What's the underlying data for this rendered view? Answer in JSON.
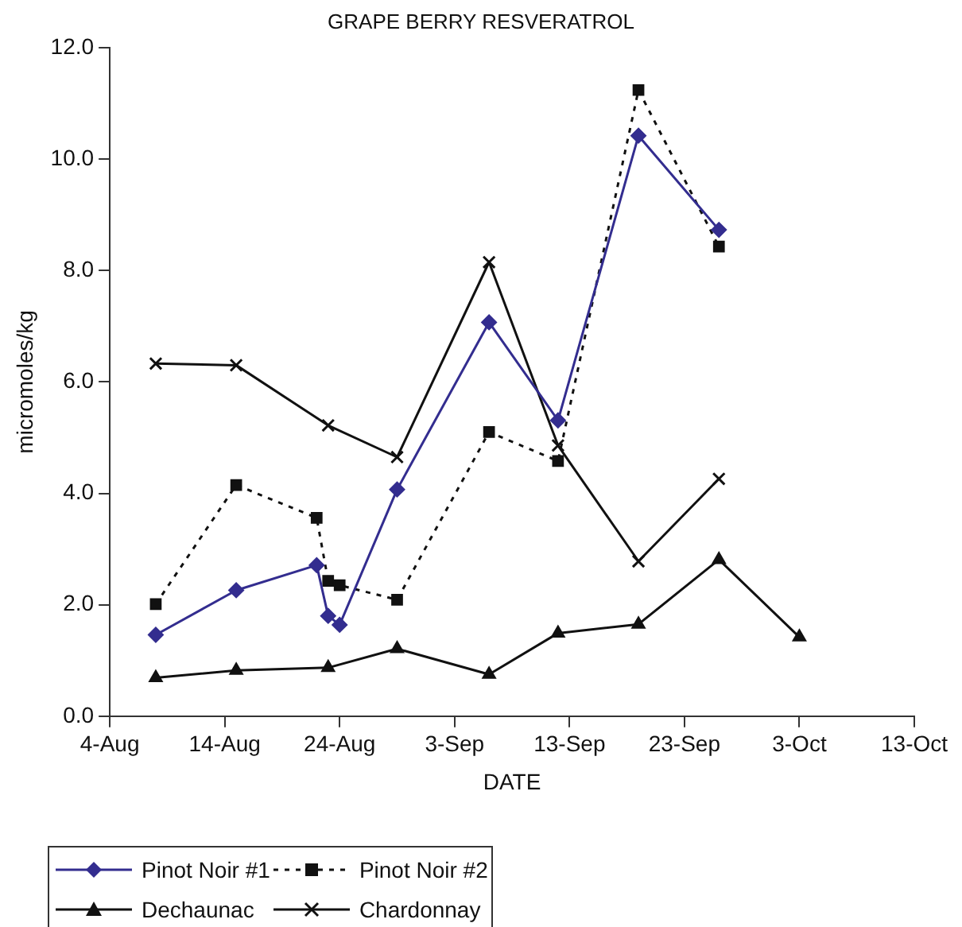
{
  "chart_data": {
    "type": "line",
    "title": "GRAPE BERRY RESVERATROL",
    "xlabel": "DATE",
    "ylabel": "micromoles/kg",
    "xlim": [
      "--08-04",
      "--10-13"
    ],
    "xticks": [
      {
        "value": "--08-04",
        "label": "4-Aug"
      },
      {
        "value": "--08-14",
        "label": "14-Aug"
      },
      {
        "value": "--08-24",
        "label": "24-Aug"
      },
      {
        "value": "--09-03",
        "label": "3-Sep"
      },
      {
        "value": "--09-13",
        "label": "13-Sep"
      },
      {
        "value": "--09-23",
        "label": "23-Sep"
      },
      {
        "value": "--10-03",
        "label": "3-Oct"
      },
      {
        "value": "--10-13",
        "label": "13-Oct"
      }
    ],
    "ylim": [
      0,
      12
    ],
    "yticks": [
      {
        "value": 0,
        "label": "0.0"
      },
      {
        "value": 2,
        "label": "2.0"
      },
      {
        "value": 4,
        "label": "4.0"
      },
      {
        "value": 6,
        "label": "6.0"
      },
      {
        "value": 8,
        "label": "8.0"
      },
      {
        "value": 10,
        "label": "10.0"
      },
      {
        "value": 12,
        "label": "12.0"
      }
    ],
    "grid": false,
    "legend": "bottom left",
    "series": [
      {
        "name": "Pinot Noir #1",
        "color": "#332d8f",
        "marker": "diamond",
        "line_style": "solid",
        "x": [
          "--08-08",
          "--08-15",
          "--08-22",
          "--08-23",
          "--08-24",
          "--08-29",
          "--09-06",
          "--09-12",
          "--09-19",
          "--09-26"
        ],
        "values": [
          1.46,
          2.26,
          2.71,
          1.8,
          1.64,
          4.07,
          7.07,
          5.31,
          10.42,
          8.73
        ]
      },
      {
        "name": "Pinot Noir #2",
        "color": "#111111",
        "marker": "square",
        "line_style": "dotted",
        "x": [
          "--08-08",
          "--08-15",
          "--08-22",
          "--08-23",
          "--08-24",
          "--08-29",
          "--09-06",
          "--09-12",
          "--09-19",
          "--09-26"
        ],
        "values": [
          2.01,
          4.15,
          3.56,
          2.43,
          2.35,
          2.09,
          5.1,
          4.58,
          11.24,
          8.43
        ]
      },
      {
        "name": "Dechaunac",
        "color": "#111111",
        "marker": "triangle",
        "line_style": "solid",
        "x": [
          "--08-08",
          "--08-15",
          "--08-23",
          "--08-29",
          "--09-06",
          "--09-12",
          "--09-19",
          "--09-26",
          "--10-03"
        ],
        "values": [
          0.69,
          0.82,
          0.87,
          1.21,
          0.75,
          1.49,
          1.65,
          2.81,
          1.42
        ]
      },
      {
        "name": "Chardonnay",
        "color": "#111111",
        "marker": "cross",
        "line_style": "solid",
        "x": [
          "--08-08",
          "--08-15",
          "--08-23",
          "--08-29",
          "--09-06",
          "--09-12",
          "--09-19",
          "--09-26"
        ],
        "values": [
          6.33,
          6.3,
          5.22,
          4.65,
          8.15,
          4.86,
          2.78,
          4.26
        ]
      }
    ]
  }
}
